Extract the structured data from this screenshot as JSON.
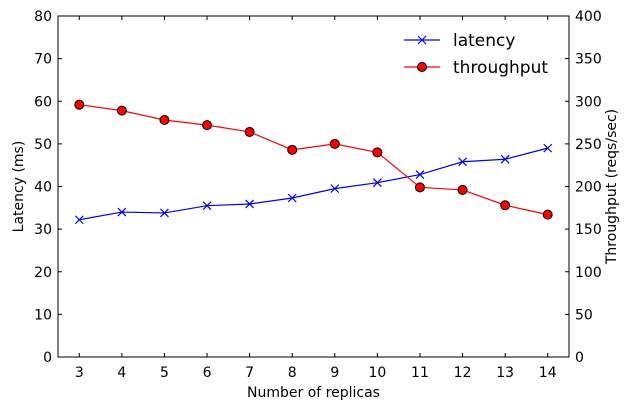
{
  "chart_data": {
    "type": "line",
    "x": [
      3,
      4,
      5,
      6,
      7,
      8,
      9,
      10,
      11,
      12,
      13,
      14
    ],
    "xlabel": "Number of replicas",
    "xlim": [
      2.5,
      14.5
    ],
    "xticks": [
      "3",
      "4",
      "5",
      "6",
      "7",
      "8",
      "9",
      "10",
      "11",
      "12",
      "13",
      "14"
    ],
    "left_axis": {
      "label": "Latency (ms)",
      "range": [
        0,
        80
      ],
      "ticks": [
        "0",
        "10",
        "20",
        "30",
        "40",
        "50",
        "60",
        "70",
        "80"
      ]
    },
    "right_axis": {
      "label": "Throughput (reqs/sec)",
      "range": [
        0,
        400
      ],
      "ticks": [
        "0",
        "50",
        "100",
        "150",
        "200",
        "250",
        "300",
        "350",
        "400"
      ]
    },
    "series": [
      {
        "name": "latency",
        "axis": "left",
        "color": "#0000ff",
        "marker": "x",
        "values": [
          32.2,
          34.0,
          33.8,
          35.5,
          35.9,
          37.3,
          39.5,
          40.9,
          42.8,
          45.8,
          46.4,
          49.0
        ]
      },
      {
        "name": "throughput",
        "axis": "right",
        "color": "#ff0000",
        "marker": "circle",
        "values": [
          296,
          289,
          278,
          272,
          264,
          243,
          250,
          240,
          199,
          196,
          178,
          167
        ]
      }
    ],
    "grid": false,
    "legend": "top-right"
  }
}
